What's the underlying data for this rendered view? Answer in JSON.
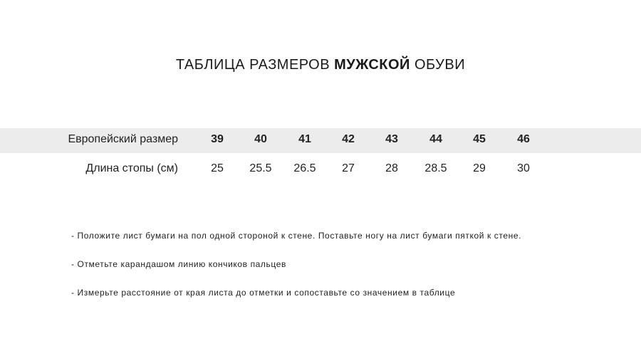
{
  "title": {
    "part1": "ТАБЛИЦА РАЗМЕРОВ ",
    "bold": "МУЖСКОЙ",
    "part2": " ОБУВИ"
  },
  "table": {
    "rows": [
      {
        "label": "Европейский размер",
        "values": [
          "39",
          "40",
          "41",
          "42",
          "43",
          "44",
          "45",
          "46"
        ]
      },
      {
        "label": "Длина стопы (см)",
        "values": [
          "25",
          "25.5",
          "26.5",
          "27",
          "28",
          "28.5",
          "29",
          "30"
        ]
      }
    ]
  },
  "instructions": [
    "- Положите лист бумаги на пол одной стороной к стене. Поставьте ногу на лист бумаги пяткой к стене.",
    "- Отметьте карандашом линию кончиков пальцев",
    "- Измерьте расстояние от края листа до отметки и сопоставьте со значением в таблице"
  ],
  "colors": {
    "band": "#ececec",
    "text": "#222222"
  }
}
